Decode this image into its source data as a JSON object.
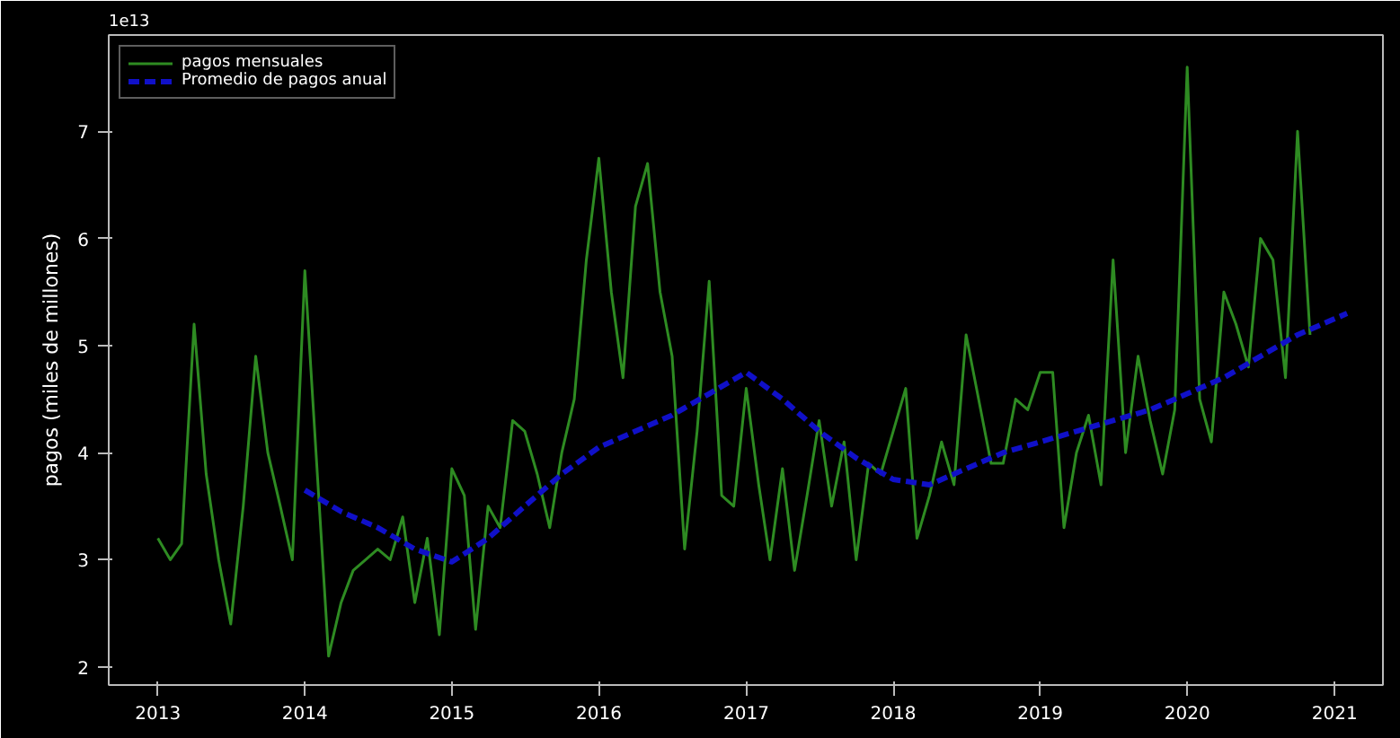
{
  "chart_data": {
    "type": "line",
    "ylabel": "pagos (miles de millones)",
    "annotations": [
      "1e13"
    ],
    "xlim": [
      "2012-09",
      "2021-05"
    ],
    "xticks": [
      "2013",
      "2014",
      "2015",
      "2016",
      "2017",
      "2018",
      "2019",
      "2020",
      "2021"
    ],
    "ylim": [
      1.83,
      7.9
    ],
    "yticks": [
      2,
      3,
      4,
      5,
      6,
      7
    ],
    "grid": false,
    "legend": "top left",
    "x": [
      "2013-01",
      "2013-02",
      "2013-03",
      "2013-04",
      "2013-05",
      "2013-06",
      "2013-07",
      "2013-08",
      "2013-09",
      "2013-10",
      "2013-11",
      "2013-12",
      "2014-01",
      "2014-02",
      "2014-03",
      "2014-04",
      "2014-05",
      "2014-06",
      "2014-07",
      "2014-08",
      "2014-09",
      "2014-10",
      "2014-11",
      "2014-12",
      "2015-01",
      "2015-02",
      "2015-03",
      "2015-04",
      "2015-05",
      "2015-06",
      "2015-07",
      "2015-08",
      "2015-09",
      "2015-10",
      "2015-11",
      "2015-12",
      "2016-01",
      "2016-02",
      "2016-03",
      "2016-04",
      "2016-05",
      "2016-06",
      "2016-07",
      "2016-08",
      "2016-09",
      "2016-10",
      "2016-11",
      "2016-12",
      "2017-01",
      "2017-02",
      "2017-03",
      "2017-04",
      "2017-05",
      "2017-06",
      "2017-07",
      "2017-08",
      "2017-09",
      "2017-10",
      "2017-11",
      "2017-12",
      "2018-01",
      "2018-02",
      "2018-03",
      "2018-04",
      "2018-05",
      "2018-06",
      "2018-07",
      "2018-08",
      "2018-09",
      "2018-10",
      "2018-11",
      "2018-12",
      "2019-01",
      "2019-02",
      "2019-03",
      "2019-04",
      "2019-05",
      "2019-06",
      "2019-07",
      "2019-08",
      "2019-09",
      "2019-10",
      "2019-11",
      "2019-12",
      "2020-01",
      "2020-02",
      "2020-03",
      "2020-04",
      "2020-05",
      "2020-06",
      "2020-07",
      "2020-08",
      "2020-09",
      "2020-10",
      "2020-11"
    ],
    "series": [
      {
        "name": "pagos mensuales",
        "color": "#2e8b22",
        "line_style": "solid",
        "values": [
          3.2,
          3.0,
          3.15,
          5.2,
          3.8,
          3.0,
          2.4,
          3.5,
          4.9,
          4.0,
          3.5,
          3.0,
          5.7,
          3.8,
          2.1,
          2.6,
          2.9,
          3.0,
          3.1,
          3.0,
          3.4,
          2.6,
          3.2,
          2.3,
          3.85,
          3.6,
          2.35,
          3.5,
          3.3,
          4.3,
          4.2,
          3.8,
          3.3,
          4.0,
          4.5,
          5.8,
          6.75,
          5.5,
          4.7,
          6.3,
          6.7,
          5.5,
          4.9,
          3.1,
          4.2,
          5.6,
          3.6,
          3.5,
          4.6,
          3.7,
          3.0,
          3.85,
          2.9,
          3.6,
          4.3,
          3.5,
          4.1,
          3.0,
          3.9,
          3.8,
          4.2,
          4.6,
          3.2,
          3.6,
          4.1,
          3.7,
          5.1,
          4.5,
          3.9,
          3.9,
          4.5,
          4.4,
          4.75,
          4.75,
          3.3,
          4.0,
          4.35,
          3.7,
          5.8,
          4.0,
          4.9,
          4.3,
          3.8,
          4.4,
          7.6,
          4.5,
          4.1,
          5.5,
          5.2,
          4.8,
          6.0,
          5.8,
          4.7,
          7.0,
          5.1
        ]
      },
      {
        "name": "Promedio de pagos anual",
        "color": "#1010c8",
        "line_style": "dashed",
        "x": [
          "2014-01",
          "2014-04",
          "2014-07",
          "2014-10",
          "2015-01",
          "2015-04",
          "2015-07",
          "2015-10",
          "2016-01",
          "2016-04",
          "2016-07",
          "2016-10",
          "2017-01",
          "2017-04",
          "2017-07",
          "2017-10",
          "2018-01",
          "2018-04",
          "2018-07",
          "2018-10",
          "2019-01",
          "2019-04",
          "2019-07",
          "2019-10",
          "2020-01",
          "2020-04",
          "2020-07",
          "2020-10",
          "2021-01",
          "2021-02"
        ],
        "values": [
          3.65,
          3.45,
          3.3,
          3.1,
          2.98,
          3.2,
          3.5,
          3.8,
          4.05,
          4.2,
          4.35,
          4.55,
          4.75,
          4.5,
          4.2,
          3.95,
          3.75,
          3.7,
          3.85,
          4.0,
          4.1,
          4.2,
          4.3,
          4.4,
          4.55,
          4.7,
          4.9,
          5.1,
          5.25,
          5.3
        ]
      }
    ]
  }
}
